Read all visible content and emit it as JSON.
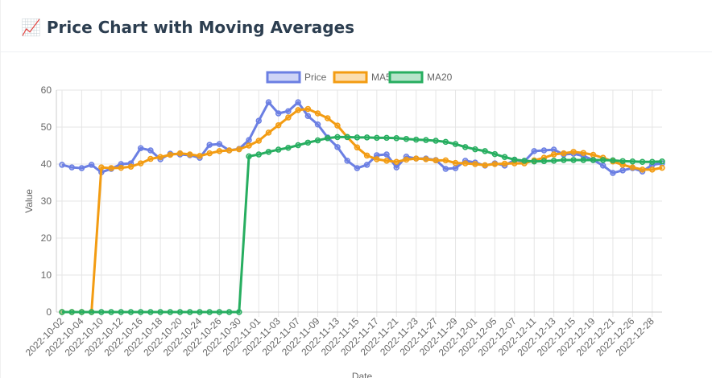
{
  "chart_data": {
    "type": "line",
    "title": "📈 Price Chart with Moving Averages",
    "x_label": "Date",
    "y_label": "Value",
    "categories": [
      "2022-10-02",
      null,
      "2022-10-04",
      null,
      "2022-10-10",
      null,
      "2022-10-12",
      null,
      "2022-10-16",
      null,
      "2022-10-18",
      null,
      "2022-10-20",
      null,
      "2022-10-24",
      null,
      "2022-10-26",
      null,
      "2022-10-30",
      null,
      "2022-11-01",
      null,
      "2022-11-03",
      null,
      "2022-11-07",
      null,
      "2022-11-09",
      null,
      "2022-11-13",
      null,
      "2022-11-15",
      null,
      "2022-11-17",
      null,
      "2022-11-21",
      null,
      "2022-11-23",
      null,
      "2022-11-27",
      null,
      "2022-11-29",
      null,
      "2022-12-01",
      null,
      "2022-12-05",
      null,
      "2022-12-07",
      null,
      "2022-12-11",
      null,
      "2022-12-13",
      null,
      "2022-12-15",
      null,
      "2022-12-19",
      null,
      "2022-12-21",
      null,
      "2022-12-26",
      null,
      "2022-12-28",
      null
    ],
    "series": [
      {
        "name": "Price",
        "color": "#6b7fe3",
        "values": [
          39.8,
          39.1,
          38.9,
          39.8,
          37.8,
          38.7,
          40,
          40.2,
          44.3,
          43.7,
          41.3,
          42.8,
          42.6,
          42.4,
          41.7,
          45.2,
          45.4,
          43.7,
          44.1,
          46.5,
          51.7,
          56.7,
          53.7,
          54.3,
          56.7,
          53,
          50.7,
          47.2,
          44.6,
          40.9,
          38.9,
          39.8,
          42.4,
          42.6,
          39.1,
          42,
          41.5,
          41.5,
          41.1,
          38.7,
          38.9,
          40.9,
          40.4,
          39.6,
          40.2,
          39.6,
          41.1,
          40.7,
          43.5,
          43.7,
          43.9,
          42.6,
          42.8,
          42.2,
          41.1,
          39.6,
          37.6,
          38.3,
          38.9,
          38,
          39.8,
          40.2
        ]
      },
      {
        "name": "MA5",
        "color": "#f39c12",
        "values": [
          0,
          0,
          0,
          0,
          39.1,
          38.9,
          39,
          39.3,
          40.2,
          41.4,
          41.9,
          42.5,
          42.9,
          42.6,
          42.2,
          42.9,
          43.5,
          43.7,
          44,
          45,
          46.3,
          48.5,
          50.5,
          52.6,
          54.6,
          54.9,
          53.7,
          52.4,
          50.4,
          47.3,
          44.5,
          42.3,
          41.3,
          40.9,
          40.6,
          41.2,
          41.5,
          41.3,
          41,
          41,
          40.3,
          40.2,
          40,
          39.7,
          40,
          40.1,
          40.2,
          40.2,
          41,
          41.7,
          42.6,
          42.9,
          43.3,
          43,
          42.5,
          41.7,
          40.7,
          39.8,
          39.1,
          38.5,
          38.5,
          39
        ]
      },
      {
        "name": "MA20",
        "color": "#27ae60",
        "values": [
          0,
          0,
          0,
          0,
          0,
          0,
          0,
          0,
          0,
          0,
          0,
          0,
          0,
          0,
          0,
          0,
          0,
          0,
          0,
          42.1,
          42.6,
          43.3,
          43.9,
          44.4,
          45.1,
          45.8,
          46.4,
          47,
          47.3,
          47.3,
          47.2,
          47.2,
          47.1,
          47.1,
          47,
          46.8,
          46.6,
          46.5,
          46.3,
          46,
          45.4,
          44.6,
          44,
          43.5,
          42.7,
          41.9,
          41.2,
          40.9,
          40.7,
          40.8,
          40.9,
          41.1,
          41.1,
          41.1,
          41.1,
          41.1,
          41,
          40.8,
          40.7,
          40.6,
          40.6,
          40.7
        ]
      }
    ],
    "ylim": [
      0,
      60
    ],
    "yticks": [
      0,
      10,
      20,
      30,
      40,
      50,
      60
    ],
    "grid": true,
    "legend": "top"
  }
}
